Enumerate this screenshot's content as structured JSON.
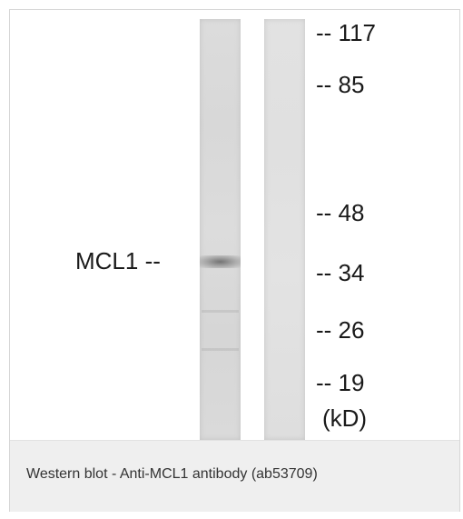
{
  "figure": {
    "protein_label": "MCL1 --",
    "markers": [
      {
        "label": "-- 117"
      },
      {
        "label": "-- 85"
      },
      {
        "label": "-- 48"
      },
      {
        "label": "-- 34"
      },
      {
        "label": "-- 26"
      },
      {
        "label": "-- 19"
      }
    ],
    "unit_label": "(kD)"
  },
  "caption": {
    "text": "Western blot - Anti-MCL1 antibody (ab53709)"
  },
  "colors": {
    "caption_background": "#efefef",
    "text": "#1a1a1a"
  }
}
